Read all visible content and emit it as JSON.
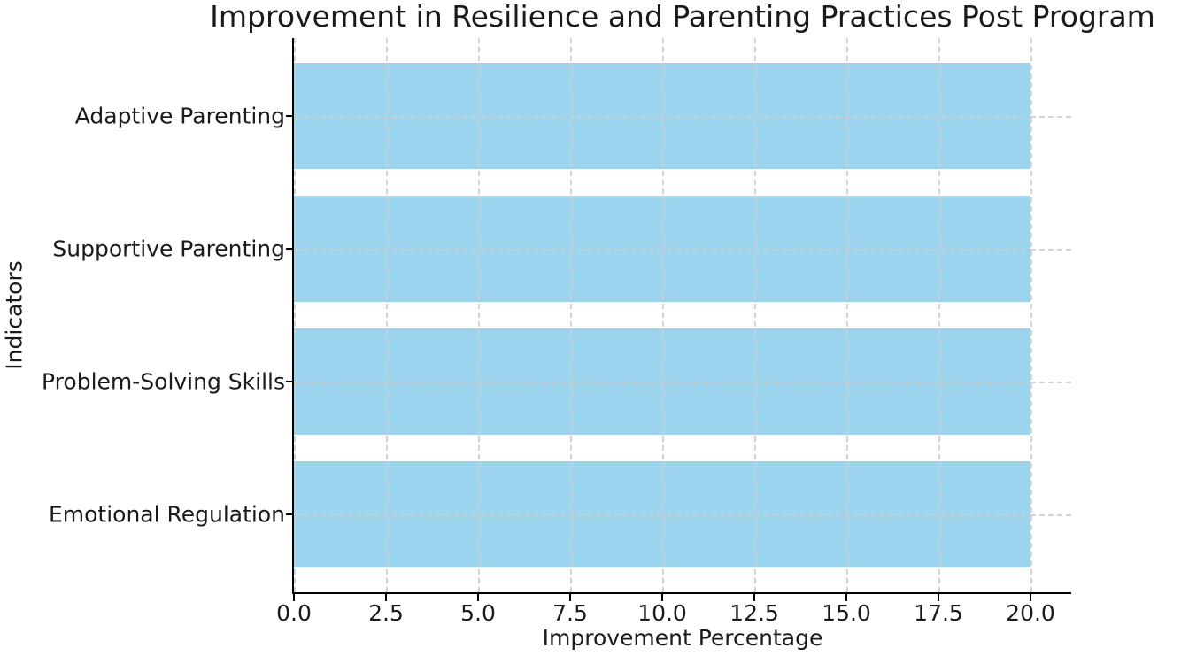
{
  "chart_data": {
    "type": "barh",
    "title": "Improvement in Resilience and Parenting Practices Post Program",
    "xlabel": "Improvement Percentage",
    "ylabel": "Indicators",
    "categories": [
      "Adaptive Parenting",
      "Supportive Parenting",
      "Problem-Solving Skills",
      "Emotional Regulation"
    ],
    "values": [
      20,
      20,
      20,
      20
    ],
    "xticks": [
      0,
      2.5,
      5,
      7.5,
      10,
      12.5,
      15,
      17.5,
      20
    ],
    "xtick_labels": [
      "0.0",
      "2.5",
      "5.0",
      "7.5",
      "10.0",
      "12.5",
      "15.0",
      "17.5",
      "20.0"
    ],
    "xlim": [
      0,
      21.1
    ],
    "bar_height_ratio": 0.8,
    "category_margin": 0.59,
    "grid": true,
    "grid_style": "dashed",
    "legend": "none",
    "colors": {
      "bar": "#9bd4ec",
      "grid": "#cccccc",
      "axis": "#000000",
      "text": "#1a1a1a",
      "background": "#ffffff"
    }
  }
}
